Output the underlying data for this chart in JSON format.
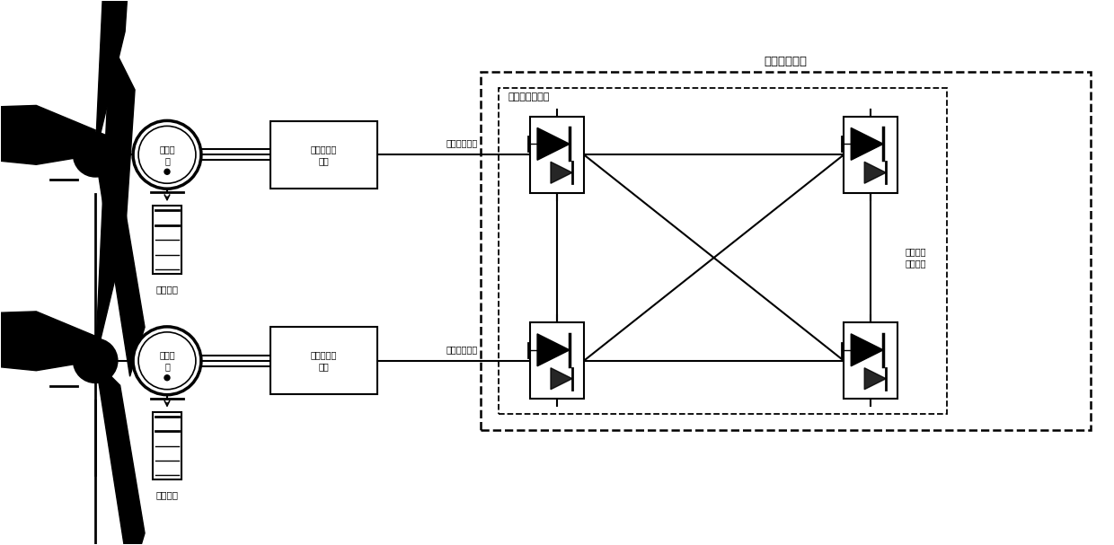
{
  "bg_color": "#ffffff",
  "fig_width": 12.4,
  "fig_height": 6.07,
  "title": "柔性直流电网",
  "subtitle": "柔性直流换流站",
  "label_fengdian_chuqu": "风电场送出线",
  "label_fengdian_chuqu2": "风电场送出线",
  "label_rouzheng": "柔性直流\n输电线路",
  "label_feng1": "风",
  "label_feng2": "风",
  "label_fenddianji1": "风电机\n组",
  "label_fenddianji2": "风电机\n组",
  "label_chaodian1": "超级电容",
  "label_chaodian2": "超级电容",
  "label_huiji1": "风电场汇集\n系统",
  "label_huiji2": "风电场汇集\n系统"
}
